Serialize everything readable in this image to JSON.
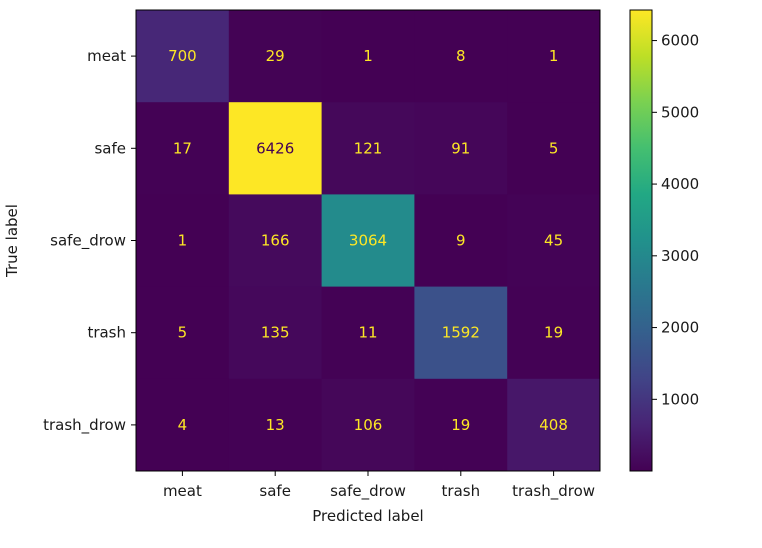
{
  "chart_data": {
    "type": "heatmap",
    "title": "",
    "xlabel": "Predicted label",
    "ylabel": "True label",
    "x_categories": [
      "meat",
      "safe",
      "safe_drow",
      "trash",
      "trash_drow"
    ],
    "y_categories": [
      "meat",
      "safe",
      "safe_drow",
      "trash",
      "trash_drow"
    ],
    "values": [
      [
        700,
        29,
        1,
        8,
        1
      ],
      [
        17,
        6426,
        121,
        91,
        5
      ],
      [
        1,
        166,
        3064,
        9,
        45
      ],
      [
        5,
        135,
        11,
        1592,
        19
      ],
      [
        4,
        13,
        106,
        19,
        408
      ]
    ],
    "colormap": "viridis",
    "vmin": 1,
    "vmax": 6426,
    "colorbar_ticks": [
      1000,
      2000,
      3000,
      4000,
      5000,
      6000
    ],
    "text_color_light": "#fde725",
    "text_color_dark": "#440154",
    "grid": false
  }
}
